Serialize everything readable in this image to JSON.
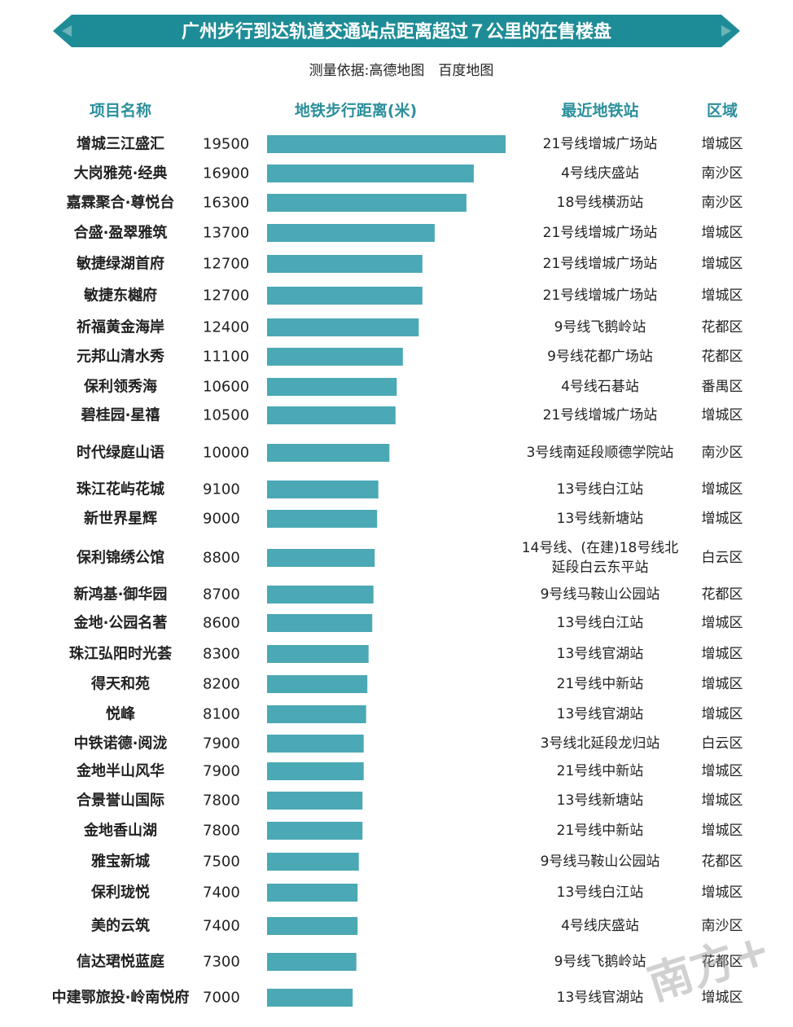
{
  "title": "广州步行到达轨道交通站点距离超过７公里的在售楼盘",
  "subtitle": "测量依据:高德地图　百度地图",
  "headers": {
    "name": "项目名称",
    "distance": "地铁步行距离(米)",
    "station": "最近地铁站",
    "district": "区域"
  },
  "colors": {
    "banner": "#1e8c96",
    "bar": "#4ba8b5",
    "header": "#2b8f9c",
    "text": "#222222"
  },
  "watermark": "南方+",
  "chart_data": {
    "type": "bar",
    "orientation": "horizontal",
    "xlim": [
      0,
      19500
    ],
    "categories": [
      "增城三江盛汇",
      "大岗雅苑·经典",
      "嘉霖聚合·尊悦台",
      "合盛·盈翠雅筑",
      "敏捷绿湖首府",
      "敏捷东樾府",
      "祈福黄金海岸",
      "元邦山清水秀",
      "保利领秀海",
      "碧桂园·星禧",
      "时代绿庭山语",
      "珠江花屿花城",
      "新世界星辉",
      "保利锦绣公馆",
      "新鸿基·御华园",
      "金地·公园名著",
      "珠江弘阳时光荟",
      "得天和苑",
      "悦峰",
      "中铁诺德·阅泷",
      "金地半山风华",
      "合景誉山国际",
      "金地香山湖",
      "雅宝新城",
      "保利珑悦",
      "美的云筑",
      "信达珺悦蓝庭",
      "中建鄂旅投·岭南悦府"
    ],
    "values": [
      19500,
      16900,
      16300,
      13700,
      12700,
      12700,
      12400,
      11100,
      10600,
      10500,
      10000,
      9100,
      9000,
      8800,
      8700,
      8600,
      8300,
      8200,
      8100,
      7900,
      7900,
      7800,
      7800,
      7500,
      7400,
      7400,
      7300,
      7000
    ],
    "stations": [
      "21号线增城广场站",
      "4号线庆盛站",
      "18号线横沥站",
      "21号线增城广场站",
      "21号线增城广场站",
      "21号线增城广场站",
      "9号线飞鹅岭站",
      "9号线花都广场站",
      "4号线石碁站",
      "21号线增城广场站",
      "3号线南延段顺德学院站",
      "13号线白江站",
      "13号线新塘站",
      "14号线、(在建)18号线北延段白云东平站",
      "9号线马鞍山公园站",
      "13号线白江站",
      "13号线官湖站",
      "21号线中新站",
      "13号线官湖站",
      "3号线北延段龙归站",
      "21号线中新站",
      "13号线新塘站",
      "21号线中新站",
      "9号线马鞍山公园站",
      "13号线白江站",
      "4号线庆盛站",
      "9号线飞鹅岭站",
      "13号线官湖站"
    ],
    "districts": [
      "增城区",
      "南沙区",
      "南沙区",
      "增城区",
      "增城区",
      "增城区",
      "花都区",
      "花都区",
      "番禺区",
      "增城区",
      "南沙区",
      "增城区",
      "增城区",
      "白云区",
      "花都区",
      "增城区",
      "增城区",
      "增城区",
      "增城区",
      "白云区",
      "增城区",
      "增城区",
      "增城区",
      "花都区",
      "增城区",
      "南沙区",
      "花都区",
      "增城区"
    ]
  }
}
